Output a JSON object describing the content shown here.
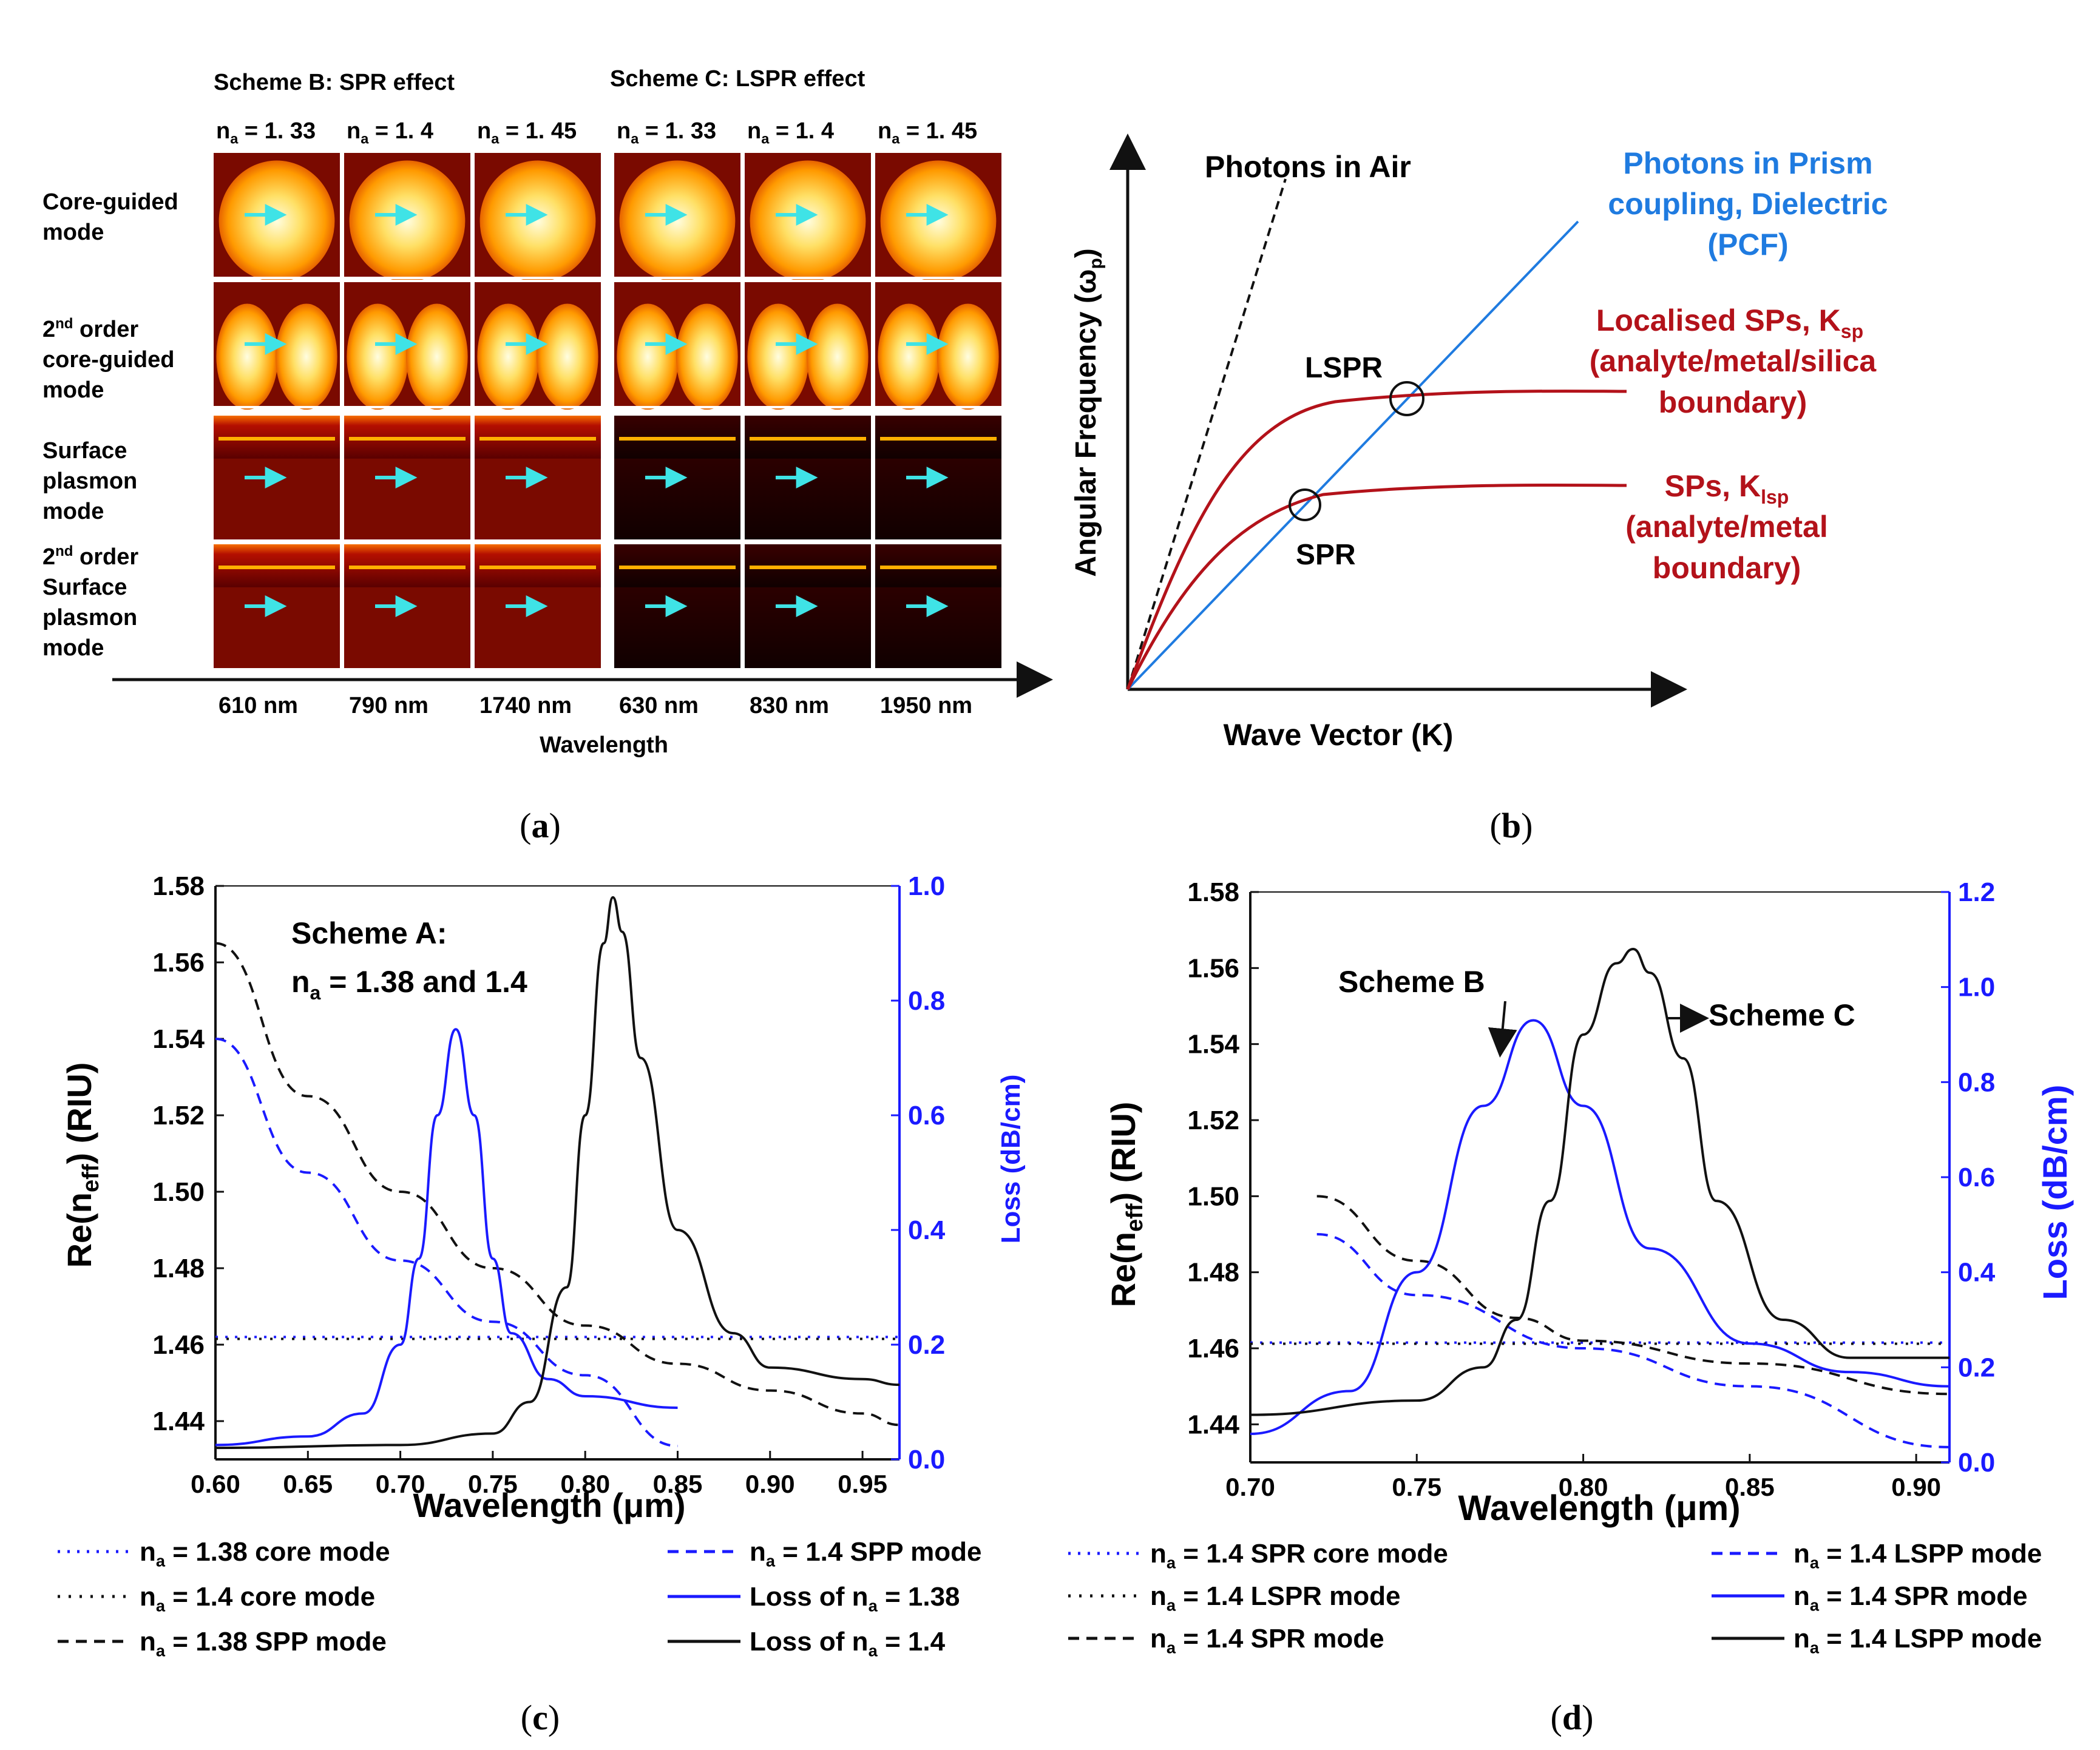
{
  "colors": {
    "black": "#111111",
    "blue": "#1a1aff",
    "red": "#b3121a",
    "skyblue": "#1f7be0",
    "cyan": "#3fe3e6"
  },
  "panel_a": {
    "label": "(a)",
    "scheme_b": "Scheme B: SPR effect",
    "scheme_c": "Scheme C: LSPR effect",
    "na_labels": [
      {
        "sym": "n",
        "sub": "a",
        "val": " = 1. 33"
      },
      {
        "sym": "n",
        "sub": "a",
        "val": " = 1. 4"
      },
      {
        "sym": "n",
        "sub": "a",
        "val": " = 1. 45"
      },
      {
        "sym": "n",
        "sub": "a",
        "val": " = 1. 33"
      },
      {
        "sym": "n",
        "sub": "a",
        "val": " = 1. 4"
      },
      {
        "sym": "n",
        "sub": "a",
        "val": " = 1. 45"
      }
    ],
    "row_labels": [
      [
        "Core-guided",
        "mode"
      ],
      [
        "2nd order",
        "core-guided",
        "mode"
      ],
      [
        "Surface",
        "plasmon",
        "mode"
      ],
      [
        "2nd order",
        "Surface",
        "plasmon",
        "mode"
      ]
    ],
    "wavelengths": [
      "610 nm",
      "790 nm",
      "1740 nm",
      "630 nm",
      "830 nm",
      "1950 nm"
    ],
    "xlabel": "Wavelength"
  },
  "panel_b": {
    "label": "(b)",
    "ylabel": "Angular Frequency (ω",
    "ylabel_sub": "p",
    "xlabel": "Wave Vector (K)",
    "photons_air": "Photons in Air",
    "prism": [
      "Photons in Prism",
      "coupling, Dielectric",
      "(PCF)"
    ],
    "lsp_label": [
      "Localised SPs, K",
      "sp",
      "(analyte/metal/silica",
      "boundary)"
    ],
    "sp_label": [
      "SPs, K",
      "lsp",
      "(analyte/metal",
      "boundary)"
    ],
    "lspr": "LSPR",
    "spr": "SPR"
  },
  "panel_c": {
    "label": "(c)",
    "ylabel": "Re(n",
    "ylabel_sub": "eff",
    "ylabel_tail": ") (RIU)",
    "y2label": "Loss (dB/cm)",
    "xlabel": "Wavelength (μm)",
    "annotation": [
      "Scheme A:",
      "n",
      "a",
      " = 1.38 and 1.4"
    ],
    "legend": [
      {
        "pre": "n",
        "sub": "a",
        "post": " = 1.38 core mode"
      },
      {
        "pre": "n",
        "sub": "a",
        "post": " = 1.4   core mode"
      },
      {
        "pre": "n",
        "sub": "a",
        "post": " = 1.38 SPP mode"
      },
      {
        "pre": "n",
        "sub": "a",
        "post": " = 1.4   SPP mode"
      },
      {
        "pre": "Loss of n",
        "sub": "a",
        "post": " = 1.38"
      },
      {
        "pre": "Loss of n",
        "sub": "a",
        "post": " = 1.4"
      }
    ]
  },
  "panel_d": {
    "label": "(d)",
    "ylabel": "Re(n",
    "ylabel_sub": "eff",
    "ylabel_tail": ") (RIU)",
    "y2label": "Loss (dB/cm)",
    "xlabel": "Wavelength (μm)",
    "scheme_b": "Scheme B",
    "scheme_c": "Scheme C",
    "legend": [
      {
        "pre": "n",
        "sub": "a",
        "post": " = 1.4 SPR core mode"
      },
      {
        "pre": "n",
        "sub": "a",
        "post": " = 1.4 LSPR mode"
      },
      {
        "pre": "n",
        "sub": "a",
        "post": " = 1.4 SPR mode"
      },
      {
        "pre": "n",
        "sub": "a",
        "post": " = 1.4 LSPP mode"
      },
      {
        "pre": "n",
        "sub": "a",
        "post": " = 1.4 SPR mode"
      },
      {
        "pre": "n",
        "sub": "a",
        "post": " = 1.4 LSPP mode"
      }
    ]
  },
  "chart_data": [
    {
      "type": "line",
      "panel": "c",
      "xlabel": "Wavelength (μm)",
      "ylabel": "Re(neff) (RIU)",
      "y2label": "Loss (dB/cm)",
      "xlim": [
        0.6,
        0.97
      ],
      "ylim": [
        1.43,
        1.58
      ],
      "y2lim": [
        0.0,
        1.0
      ],
      "xticks": [
        "0.60",
        "0.65",
        "0.70",
        "0.75",
        "0.80",
        "0.85",
        "0.90",
        "0.95"
      ],
      "yticks": [
        "1.44",
        "1.46",
        "1.48",
        "1.50",
        "1.52",
        "1.54",
        "1.56",
        "1.58"
      ],
      "y2ticks": [
        "0.0",
        "0.2",
        "0.4",
        "0.6",
        "0.8",
        "1.0"
      ],
      "series": [
        {
          "name": "na = 1.38 core mode",
          "axis": "left",
          "x": [
            0.6,
            0.97
          ],
          "values": [
            1.462,
            1.462
          ]
        },
        {
          "name": "na = 1.4 core mode",
          "axis": "left",
          "x": [
            0.6,
            0.97
          ],
          "values": [
            1.4615,
            1.4615
          ]
        },
        {
          "name": "na = 1.38 SPP mode",
          "axis": "left",
          "x": [
            0.6,
            0.65,
            0.7,
            0.75,
            0.8,
            0.85,
            0.9,
            0.95,
            0.97
          ],
          "values": [
            1.565,
            1.525,
            1.5,
            1.48,
            1.465,
            1.455,
            1.448,
            1.442,
            1.439
          ]
        },
        {
          "name": "na = 1.4 SPP mode",
          "axis": "left",
          "x": [
            0.6,
            0.65,
            0.7,
            0.75,
            0.8,
            0.85
          ],
          "values": [
            1.54,
            1.505,
            1.482,
            1.466,
            1.452,
            1.4335
          ]
        },
        {
          "name": "Loss of na = 1.38",
          "axis": "right",
          "x": [
            0.6,
            0.65,
            0.68,
            0.7,
            0.71,
            0.72,
            0.73,
            0.74,
            0.75,
            0.76,
            0.78,
            0.8,
            0.85
          ],
          "values": [
            0.025,
            0.04,
            0.08,
            0.2,
            0.35,
            0.6,
            0.75,
            0.6,
            0.35,
            0.22,
            0.14,
            0.11,
            0.09
          ]
        },
        {
          "name": "Loss of na = 1.4",
          "axis": "right",
          "x": [
            0.6,
            0.7,
            0.75,
            0.77,
            0.79,
            0.8,
            0.81,
            0.815,
            0.82,
            0.83,
            0.85,
            0.88,
            0.9,
            0.95,
            0.97
          ],
          "values": [
            0.02,
            0.025,
            0.045,
            0.1,
            0.3,
            0.6,
            0.9,
            0.98,
            0.92,
            0.7,
            0.4,
            0.22,
            0.16,
            0.14,
            0.13
          ]
        }
      ]
    },
    {
      "type": "line",
      "panel": "d",
      "xlabel": "Wavelength (μm)",
      "ylabel": "Re(neff) (RIU)",
      "y2label": "Loss (dB/cm)",
      "xlim": [
        0.7,
        0.91
      ],
      "ylim": [
        1.43,
        1.58
      ],
      "y2lim": [
        0.0,
        1.2
      ],
      "xticks": [
        "0.70",
        "0.75",
        "0.80",
        "0.85",
        "0.90"
      ],
      "yticks": [
        "1.44",
        "1.46",
        "1.48",
        "1.50",
        "1.52",
        "1.54",
        "1.56",
        "1.58"
      ],
      "y2ticks": [
        "0.0",
        "0.2",
        "0.4",
        "0.6",
        "0.8",
        "1.0",
        "1.2"
      ],
      "series": [
        {
          "name": "na = 1.4 SPR core mode",
          "axis": "left",
          "x": [
            0.7,
            0.91
          ],
          "values": [
            1.4615,
            1.4615
          ]
        },
        {
          "name": "na = 1.4 LSPR mode",
          "axis": "left",
          "x": [
            0.7,
            0.91
          ],
          "values": [
            1.4612,
            1.4612
          ]
        },
        {
          "name": "na = 1.4 SPR mode",
          "axis": "left",
          "x": [
            0.72,
            0.75,
            0.78,
            0.8,
            0.85,
            0.91
          ],
          "values": [
            1.5,
            1.483,
            1.468,
            1.462,
            1.456,
            1.448
          ]
        },
        {
          "name": "na = 1.4 LSPP mode",
          "axis": "left",
          "x": [
            0.72,
            0.75,
            0.8,
            0.85,
            0.91
          ],
          "values": [
            1.49,
            1.474,
            1.46,
            1.45,
            1.434
          ]
        },
        {
          "name": "na = 1.4 SPR mode (loss)",
          "axis": "right",
          "x": [
            0.7,
            0.73,
            0.75,
            0.77,
            0.785,
            0.8,
            0.82,
            0.85,
            0.88,
            0.91
          ],
          "values": [
            0.06,
            0.15,
            0.4,
            0.75,
            0.93,
            0.75,
            0.45,
            0.25,
            0.19,
            0.16
          ]
        },
        {
          "name": "na = 1.4 LSPP mode (loss)",
          "axis": "right",
          "x": [
            0.7,
            0.75,
            0.77,
            0.78,
            0.79,
            0.8,
            0.81,
            0.815,
            0.82,
            0.83,
            0.84,
            0.86,
            0.88,
            0.91
          ],
          "values": [
            0.1,
            0.13,
            0.2,
            0.3,
            0.55,
            0.9,
            1.05,
            1.08,
            1.03,
            0.85,
            0.55,
            0.3,
            0.22,
            0.22
          ]
        }
      ]
    }
  ]
}
